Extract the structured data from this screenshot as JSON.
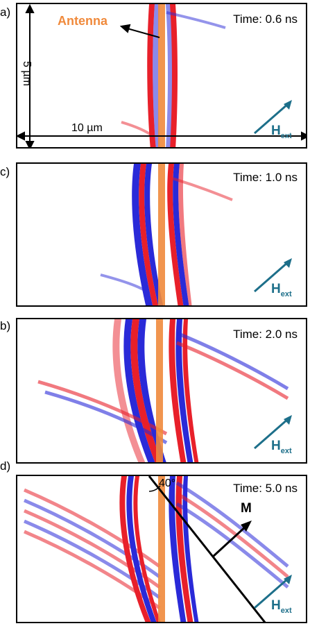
{
  "panels": [
    {
      "letter": "a)",
      "time": "Time: 0.6 ns"
    },
    {
      "letter": "c)",
      "time": "Time: 1.0 ns"
    },
    {
      "letter": "b)",
      "time": "Time: 2.0 ns"
    },
    {
      "letter": "d)",
      "time": "Time: 5.0 ns"
    }
  ],
  "annotations": {
    "antenna": "Antenna",
    "height": "5 µm",
    "width": "10 µm",
    "field_main": "H",
    "field_sub": "ext",
    "magnetization": "M",
    "angle": "40°"
  },
  "colors": {
    "wave_red": "#e8202a",
    "wave_blue": "#2a2ad8",
    "antenna": "#f08a3c",
    "field_arrow": "#1d6f8a"
  }
}
